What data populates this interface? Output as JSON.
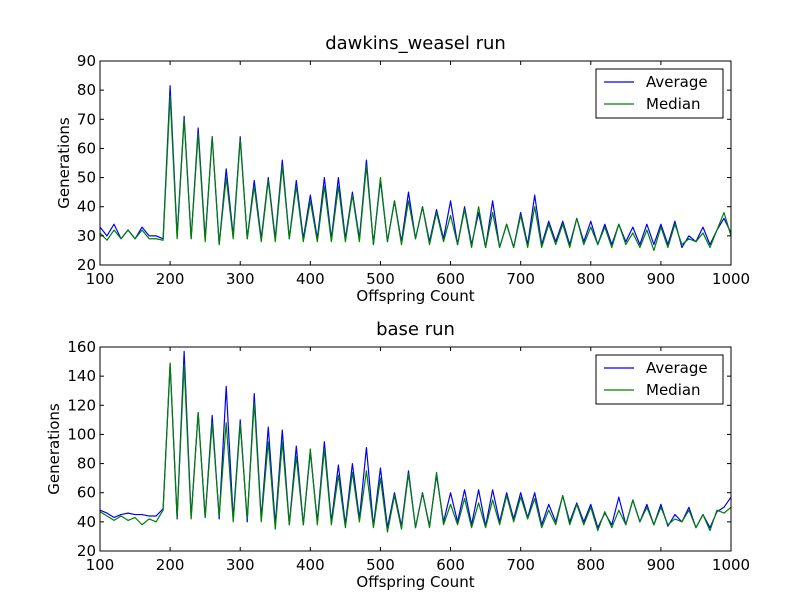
{
  "chart_data": [
    {
      "type": "line",
      "title": "dawkins_weasel run",
      "xlabel": "Offspring Count",
      "ylabel": "Generations",
      "xlim": [
        100,
        1000
      ],
      "ylim": [
        20,
        90
      ],
      "xticks": [
        "100",
        "200",
        "300",
        "400",
        "500",
        "600",
        "700",
        "800",
        "900",
        "1000"
      ],
      "yticks": [
        "20",
        "30",
        "40",
        "50",
        "60",
        "70",
        "80",
        "90"
      ],
      "legend": "top-right",
      "grid": false,
      "x": [
        100,
        110,
        120,
        130,
        140,
        150,
        160,
        170,
        180,
        190,
        200,
        210,
        220,
        230,
        240,
        250,
        260,
        270,
        280,
        290,
        300,
        310,
        320,
        330,
        340,
        350,
        360,
        370,
        380,
        390,
        400,
        410,
        420,
        430,
        440,
        450,
        460,
        470,
        480,
        490,
        500,
        510,
        520,
        530,
        540,
        550,
        560,
        570,
        580,
        590,
        600,
        610,
        620,
        630,
        640,
        650,
        660,
        670,
        680,
        690,
        700,
        710,
        720,
        730,
        740,
        750,
        760,
        770,
        780,
        790,
        800,
        810,
        820,
        830,
        840,
        850,
        860,
        870,
        880,
        890,
        900,
        910,
        920,
        930,
        940,
        950,
        960,
        970,
        980,
        990,
        1000
      ],
      "series": [
        {
          "name": "Average",
          "color": "#0000ff",
          "values": [
            33,
            30,
            34,
            29,
            32,
            29,
            33,
            30,
            30,
            29,
            81.5,
            30,
            71,
            29,
            67,
            29,
            64,
            27,
            53,
            30,
            64,
            29,
            49,
            29,
            50,
            29,
            56,
            29,
            49,
            29,
            44,
            29,
            50,
            29,
            50,
            29,
            45,
            29,
            56,
            27,
            49,
            28,
            42,
            28,
            45,
            29,
            40,
            28,
            39,
            29,
            42,
            27,
            40,
            27,
            38,
            26,
            42,
            26,
            34,
            26,
            38,
            27,
            44,
            27,
            35,
            28,
            35,
            27,
            36,
            28,
            35,
            27,
            34,
            27,
            34,
            28,
            33,
            27,
            34,
            27,
            34,
            27,
            35,
            26,
            30,
            28,
            33,
            27,
            32,
            36,
            31
          ]
        },
        {
          "name": "Median",
          "color": "#008000",
          "values": [
            31,
            28.5,
            32,
            29,
            32,
            29,
            32,
            29,
            29,
            28.5,
            78,
            29,
            70,
            29,
            65,
            28,
            64,
            27,
            50,
            29,
            63,
            29,
            47,
            28,
            49,
            28,
            54,
            29,
            47,
            28,
            42,
            28,
            47,
            28,
            47,
            28,
            44,
            28,
            54,
            27,
            50,
            28,
            42,
            27,
            42,
            29,
            40,
            27,
            38,
            28,
            37,
            27,
            39,
            26,
            40,
            26,
            38,
            26,
            34,
            26,
            37,
            26,
            40,
            26,
            34,
            27,
            34,
            26,
            36,
            27,
            33,
            27,
            33,
            26,
            34,
            27,
            31,
            26,
            32,
            25,
            33,
            26,
            34,
            27,
            29,
            28,
            31,
            26,
            32,
            38,
            30
          ]
        }
      ]
    },
    {
      "type": "line",
      "title": "base run",
      "xlabel": "Offspring Count",
      "ylabel": "Generations",
      "xlim": [
        100,
        1000
      ],
      "ylim": [
        20,
        160
      ],
      "xticks": [
        "100",
        "200",
        "300",
        "400",
        "500",
        "600",
        "700",
        "800",
        "900",
        "1000"
      ],
      "yticks": [
        "20",
        "40",
        "60",
        "80",
        "100",
        "120",
        "140",
        "160"
      ],
      "legend": "top-right",
      "grid": false,
      "x": [
        100,
        110,
        120,
        130,
        140,
        150,
        160,
        170,
        180,
        190,
        200,
        210,
        220,
        230,
        240,
        250,
        260,
        270,
        280,
        290,
        300,
        310,
        320,
        330,
        340,
        350,
        360,
        370,
        380,
        390,
        400,
        410,
        420,
        430,
        440,
        450,
        460,
        470,
        480,
        490,
        500,
        510,
        520,
        530,
        540,
        550,
        560,
        570,
        580,
        590,
        600,
        610,
        620,
        630,
        640,
        650,
        660,
        670,
        680,
        690,
        700,
        710,
        720,
        730,
        740,
        750,
        760,
        770,
        780,
        790,
        800,
        810,
        820,
        830,
        840,
        850,
        860,
        870,
        880,
        890,
        900,
        910,
        920,
        930,
        940,
        950,
        960,
        970,
        980,
        990,
        1000
      ],
      "series": [
        {
          "name": "Average",
          "color": "#0000ff",
          "values": [
            48,
            46,
            43,
            45,
            46,
            45,
            45,
            44,
            44,
            49,
            148,
            42,
            157,
            43,
            115,
            43,
            113,
            42,
            133,
            42,
            110,
            40,
            128,
            42,
            105,
            38,
            103,
            38,
            92,
            38,
            88,
            40,
            95,
            40,
            79,
            38,
            80,
            42,
            91,
            37,
            77,
            36,
            60,
            37,
            75,
            36,
            60,
            37,
            72,
            40,
            60,
            40,
            62,
            38,
            62,
            37,
            62,
            40,
            60,
            42,
            60,
            43,
            60,
            38,
            52,
            40,
            58,
            40,
            53,
            40,
            52,
            36,
            46,
            38,
            57,
            38,
            55,
            40,
            52,
            38,
            52,
            37,
            45,
            40,
            50,
            36,
            45,
            36,
            47,
            50,
            57
          ]
        },
        {
          "name": "Median",
          "color": "#008000",
          "values": [
            47,
            44,
            41,
            44,
            41,
            43,
            38,
            42,
            40,
            48,
            149,
            43,
            148,
            42,
            115,
            43,
            108,
            44,
            108,
            40,
            107,
            42,
            122,
            40,
            95,
            35,
            95,
            38,
            85,
            38,
            90,
            38,
            90,
            38,
            72,
            36,
            74,
            40,
            75,
            36,
            70,
            33,
            58,
            35,
            73,
            36,
            60,
            36,
            74,
            38,
            52,
            38,
            56,
            36,
            53,
            36,
            55,
            38,
            58,
            40,
            57,
            42,
            56,
            36,
            48,
            38,
            58,
            38,
            52,
            38,
            50,
            34,
            47,
            36,
            48,
            38,
            55,
            40,
            50,
            38,
            50,
            38,
            42,
            40,
            48,
            36,
            45,
            34,
            48,
            46,
            50
          ]
        }
      ]
    }
  ]
}
